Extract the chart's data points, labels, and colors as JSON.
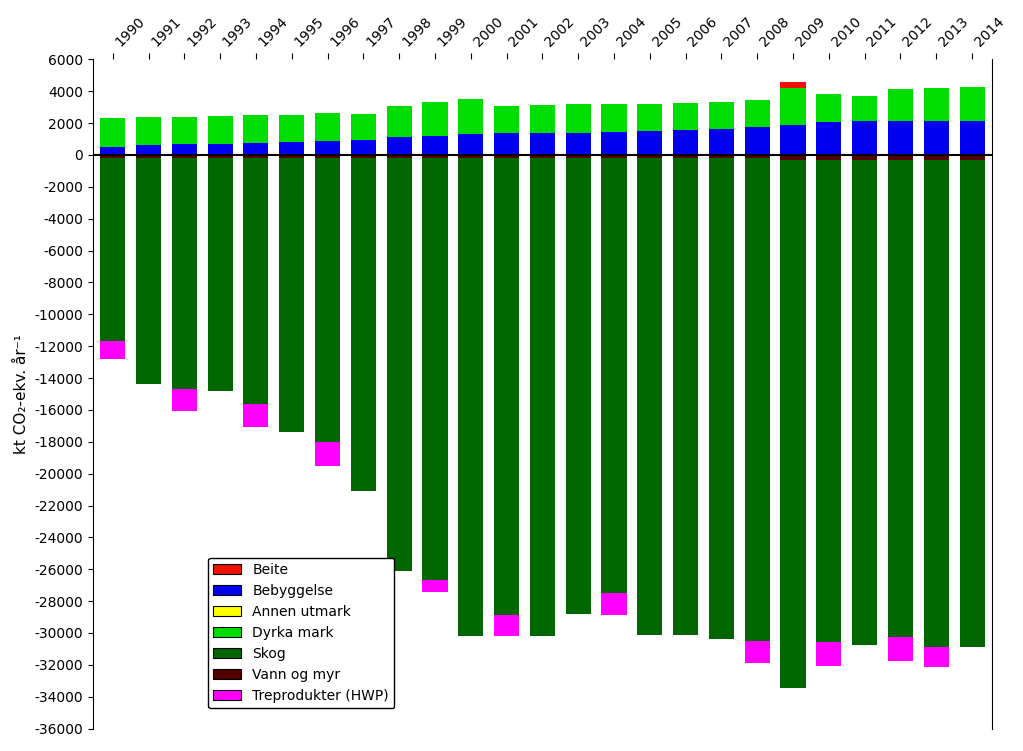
{
  "years": [
    1990,
    1991,
    1992,
    1993,
    1994,
    1995,
    1996,
    1997,
    1998,
    1999,
    2000,
    2001,
    2002,
    2003,
    2004,
    2005,
    2006,
    2007,
    2008,
    2009,
    2010,
    2011,
    2012,
    2013,
    2014
  ],
  "beite": [
    0,
    0,
    0,
    0,
    0,
    0,
    0,
    0,
    0,
    0,
    0,
    0,
    0,
    0,
    0,
    0,
    0,
    0,
    0,
    350,
    0,
    0,
    0,
    0,
    0
  ],
  "bebyggelse": [
    500,
    650,
    700,
    700,
    750,
    800,
    900,
    950,
    1100,
    1200,
    1300,
    1350,
    1400,
    1400,
    1450,
    1500,
    1550,
    1650,
    1750,
    1900,
    2050,
    2100,
    2150,
    2100,
    2150
  ],
  "annen_utmark": [
    0,
    0,
    0,
    0,
    0,
    0,
    0,
    0,
    0,
    0,
    0,
    0,
    0,
    0,
    0,
    0,
    0,
    0,
    0,
    0,
    0,
    0,
    0,
    0,
    0
  ],
  "dyrka_mark": [
    1800,
    1700,
    1700,
    1750,
    1750,
    1700,
    1750,
    1600,
    2000,
    2100,
    2200,
    1700,
    1750,
    1800,
    1750,
    1700,
    1700,
    1700,
    1700,
    2300,
    1800,
    1600,
    2000,
    2100,
    2100
  ],
  "skog": [
    -11500,
    -14200,
    -14500,
    -14600,
    -15400,
    -17200,
    -17800,
    -20900,
    -25900,
    -26500,
    -30000,
    -28700,
    -30000,
    -28600,
    -27300,
    -29900,
    -29900,
    -30200,
    -30300,
    -33100,
    -30200,
    -30400,
    -29900,
    -30500,
    -30500
  ],
  "vann_og_myr": [
    -200,
    -200,
    -200,
    -200,
    -200,
    -200,
    -200,
    -200,
    -200,
    -200,
    -200,
    -200,
    -200,
    -200,
    -200,
    -200,
    -200,
    -200,
    -200,
    -350,
    -350,
    -350,
    -350,
    -350,
    -350
  ],
  "treprodukter": [
    -1100,
    0,
    -1400,
    0,
    -1500,
    0,
    -1500,
    0,
    0,
    -700,
    0,
    -1300,
    0,
    0,
    -1400,
    0,
    0,
    0,
    -1400,
    0,
    -1500,
    0,
    -1500,
    -1300,
    0
  ],
  "colors": {
    "beite": "#ee1100",
    "bebyggelse": "#0000ee",
    "annen_utmark": "#ffff00",
    "dyrka_mark": "#00dd00",
    "skog": "#006600",
    "vann_og_myr": "#550000",
    "treprodukter": "#ff00ff"
  },
  "ylabel": "kt CO₂-ekv. år⁻¹",
  "ylim": [
    -36000,
    6000
  ],
  "yticks": [
    6000,
    4000,
    2000,
    0,
    -2000,
    -4000,
    -6000,
    -8000,
    -10000,
    -12000,
    -14000,
    -16000,
    -18000,
    -20000,
    -22000,
    -24000,
    -26000,
    -28000,
    -30000,
    -32000,
    -34000,
    -36000
  ],
  "legend_labels": [
    "Beite",
    "Bebyggelse",
    "Annen utmark",
    "Dyrka mark",
    "Skog",
    "Vann og myr",
    "Treprodukter (HWP)"
  ]
}
